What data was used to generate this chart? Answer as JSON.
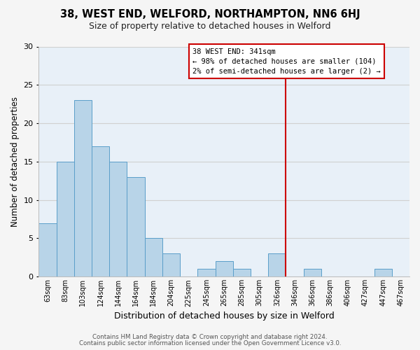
{
  "title": "38, WEST END, WELFORD, NORTHAMPTON, NN6 6HJ",
  "subtitle": "Size of property relative to detached houses in Welford",
  "xlabel": "Distribution of detached houses by size in Welford",
  "ylabel": "Number of detached properties",
  "footer_line1": "Contains HM Land Registry data © Crown copyright and database right 2024.",
  "footer_line2": "Contains public sector information licensed under the Open Government Licence v3.0.",
  "bin_labels": [
    "63sqm",
    "83sqm",
    "103sqm",
    "124sqm",
    "144sqm",
    "164sqm",
    "184sqm",
    "204sqm",
    "225sqm",
    "245sqm",
    "265sqm",
    "285sqm",
    "305sqm",
    "326sqm",
    "346sqm",
    "366sqm",
    "386sqm",
    "406sqm",
    "427sqm",
    "447sqm",
    "467sqm"
  ],
  "bin_values": [
    7,
    15,
    23,
    17,
    15,
    13,
    5,
    3,
    0,
    1,
    2,
    1,
    0,
    3,
    0,
    1,
    0,
    0,
    0,
    1,
    0
  ],
  "bar_color": "#b8d4e8",
  "bar_edge_color": "#5a9ec9",
  "grid_color": "#d0d0d0",
  "vline_x_index": 14.0,
  "vline_color": "#cc0000",
  "annotation_title": "38 WEST END: 341sqm",
  "annotation_line1": "← 98% of detached houses are smaller (104)",
  "annotation_line2": "2% of semi-detached houses are larger (2) →",
  "ylim": [
    0,
    30
  ],
  "yticks": [
    0,
    5,
    10,
    15,
    20,
    25,
    30
  ],
  "background_color": "#f5f5f5",
  "plot_bg_color": "#e8f0f8"
}
